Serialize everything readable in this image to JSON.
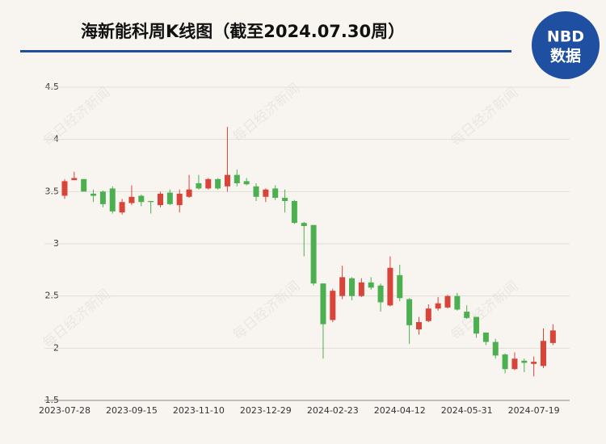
{
  "chart_data": {
    "type": "candlestick",
    "title": "海新能科周K线图（截至2024.07.30周）",
    "logo": {
      "top": "NBD",
      "bottom": "数据"
    },
    "watermark": "每日经济新闻",
    "categories": [
      "2023-07-28",
      null,
      null,
      null,
      null,
      null,
      null,
      "2023-09-15",
      null,
      null,
      null,
      null,
      null,
      null,
      "2023-11-10",
      null,
      null,
      null,
      null,
      null,
      null,
      "2023-12-29",
      null,
      null,
      null,
      null,
      null,
      null,
      "2024-02-23",
      null,
      null,
      null,
      null,
      null,
      null,
      "2024-04-12",
      null,
      null,
      null,
      null,
      null,
      null,
      "2024-05-31",
      null,
      null,
      null,
      null,
      null,
      null,
      "2024-07-19",
      null,
      null
    ],
    "open": [
      3.46,
      3.61,
      3.62,
      3.48,
      3.5,
      3.53,
      3.3,
      3.39,
      3.46,
      3.41,
      3.37,
      3.49,
      3.37,
      3.45,
      3.58,
      3.53,
      3.62,
      3.55,
      3.66,
      3.6,
      3.55,
      3.45,
      3.53,
      3.44,
      3.41,
      3.2,
      3.18,
      2.62,
      2.27,
      2.5,
      2.67,
      2.5,
      2.63,
      2.6,
      2.41,
      2.7,
      2.47,
      2.18,
      2.26,
      2.38,
      2.39,
      2.5,
      2.35,
      2.3,
      2.15,
      2.06,
      1.94,
      1.8,
      1.88,
      1.85,
      1.83,
      2.05
    ],
    "high": [
      3.62,
      3.69,
      3.62,
      3.52,
      3.51,
      3.55,
      3.43,
      3.56,
      3.47,
      3.41,
      3.5,
      3.52,
      3.52,
      3.66,
      3.66,
      3.63,
      3.63,
      4.12,
      3.71,
      3.63,
      3.58,
      3.53,
      3.56,
      3.52,
      3.42,
      3.21,
      3.18,
      2.62,
      2.57,
      2.79,
      2.68,
      2.67,
      2.68,
      2.62,
      2.88,
      2.8,
      2.48,
      2.3,
      2.42,
      2.49,
      2.51,
      2.53,
      2.41,
      2.3,
      2.15,
      2.09,
      1.95,
      1.96,
      1.9,
      1.92,
      2.19,
      2.23
    ],
    "low": [
      3.43,
      3.61,
      3.5,
      3.4,
      3.35,
      3.29,
      3.28,
      3.37,
      3.36,
      3.29,
      3.35,
      3.37,
      3.3,
      3.44,
      3.52,
      3.52,
      3.52,
      3.5,
      3.55,
      3.56,
      3.41,
      3.4,
      3.42,
      3.3,
      3.19,
      2.88,
      2.6,
      1.9,
      2.25,
      2.47,
      2.46,
      2.49,
      2.56,
      2.35,
      2.4,
      2.45,
      2.04,
      2.13,
      2.25,
      2.36,
      2.38,
      2.36,
      2.28,
      2.1,
      2.03,
      1.9,
      1.76,
      1.79,
      1.77,
      1.73,
      1.81,
      2.03
    ],
    "close": [
      3.6,
      3.63,
      3.5,
      3.46,
      3.38,
      3.31,
      3.4,
      3.45,
      3.4,
      3.4,
      3.48,
      3.38,
      3.48,
      3.52,
      3.53,
      3.62,
      3.53,
      3.66,
      3.58,
      3.57,
      3.45,
      3.52,
      3.44,
      3.41,
      3.2,
      3.17,
      2.62,
      2.23,
      2.55,
      2.68,
      2.5,
      2.63,
      2.58,
      2.44,
      2.77,
      2.48,
      2.22,
      2.25,
      2.38,
      2.43,
      2.5,
      2.37,
      2.29,
      2.14,
      2.06,
      1.93,
      1.8,
      1.9,
      1.86,
      1.87,
      2.07,
      2.17
    ],
    "up_color": "#d9443a",
    "down_color": "#4caf50",
    "ylim": [
      1.5,
      4.5
    ],
    "yticks": [
      1.5,
      2,
      2.5,
      3,
      3.5,
      4,
      4.5
    ],
    "grid": true
  }
}
